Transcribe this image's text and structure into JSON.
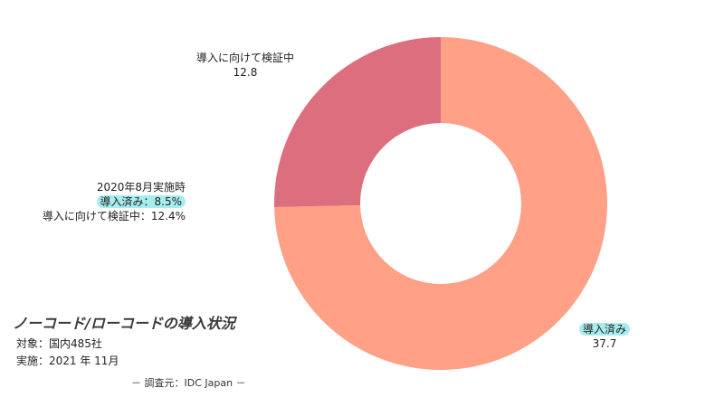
{
  "chart_data": {
    "type": "pie",
    "donut": true,
    "title": "ノーコード/ローコードの導入状況",
    "categories": [
      "導入済み",
      "導入に向けて検証中"
    ],
    "values": [
      37.7,
      12.8
    ],
    "value_labels": [
      "37.7",
      "12.8"
    ],
    "colors": {
      "導入済み": "#ffa087",
      "導入に向けて検証中": "#dc6e7d",
      "highlight": "#a7ecef"
    }
  },
  "labels": {
    "verify_name": "導入に向けて検証中",
    "verify_value": "12.8",
    "done_name": "導入済み",
    "done_value": "37.7"
  },
  "comparison": {
    "heading": "2020年8月実施時",
    "done": "導入済み：8.5%",
    "verify": "導入に向けて検証中：12.4%"
  },
  "meta": {
    "target": "対象：国内485社",
    "date": "実施：2021 年 11月",
    "source": "－ 調査元：IDC Japan －"
  }
}
